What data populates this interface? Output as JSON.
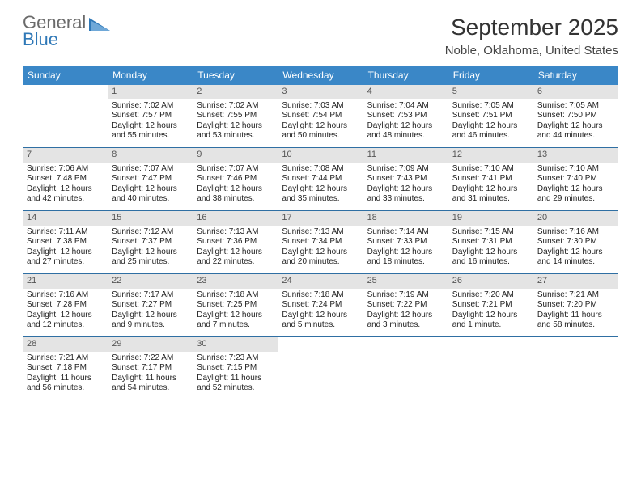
{
  "logo": {
    "line1": "General",
    "line2": "Blue"
  },
  "title": "September 2025",
  "location": "Noble, Oklahoma, United States",
  "colors": {
    "header_bg": "#3a87c7",
    "header_text": "#ffffff",
    "daynum_bg": "#e4e4e4",
    "cell_border": "#2f6fa3",
    "logo_gray": "#6a6a6a",
    "logo_blue": "#2f78b7"
  },
  "typography": {
    "title_fontsize": 28,
    "location_fontsize": 15,
    "dow_fontsize": 12,
    "cell_fontsize": 10
  },
  "days_of_week": [
    "Sunday",
    "Monday",
    "Tuesday",
    "Wednesday",
    "Thursday",
    "Friday",
    "Saturday"
  ],
  "weeks": [
    [
      null,
      {
        "n": "1",
        "sr": "Sunrise: 7:02 AM",
        "ss": "Sunset: 7:57 PM",
        "dl1": "Daylight: 12 hours",
        "dl2": "and 55 minutes."
      },
      {
        "n": "2",
        "sr": "Sunrise: 7:02 AM",
        "ss": "Sunset: 7:55 PM",
        "dl1": "Daylight: 12 hours",
        "dl2": "and 53 minutes."
      },
      {
        "n": "3",
        "sr": "Sunrise: 7:03 AM",
        "ss": "Sunset: 7:54 PM",
        "dl1": "Daylight: 12 hours",
        "dl2": "and 50 minutes."
      },
      {
        "n": "4",
        "sr": "Sunrise: 7:04 AM",
        "ss": "Sunset: 7:53 PM",
        "dl1": "Daylight: 12 hours",
        "dl2": "and 48 minutes."
      },
      {
        "n": "5",
        "sr": "Sunrise: 7:05 AM",
        "ss": "Sunset: 7:51 PM",
        "dl1": "Daylight: 12 hours",
        "dl2": "and 46 minutes."
      },
      {
        "n": "6",
        "sr": "Sunrise: 7:05 AM",
        "ss": "Sunset: 7:50 PM",
        "dl1": "Daylight: 12 hours",
        "dl2": "and 44 minutes."
      }
    ],
    [
      {
        "n": "7",
        "sr": "Sunrise: 7:06 AM",
        "ss": "Sunset: 7:48 PM",
        "dl1": "Daylight: 12 hours",
        "dl2": "and 42 minutes."
      },
      {
        "n": "8",
        "sr": "Sunrise: 7:07 AM",
        "ss": "Sunset: 7:47 PM",
        "dl1": "Daylight: 12 hours",
        "dl2": "and 40 minutes."
      },
      {
        "n": "9",
        "sr": "Sunrise: 7:07 AM",
        "ss": "Sunset: 7:46 PM",
        "dl1": "Daylight: 12 hours",
        "dl2": "and 38 minutes."
      },
      {
        "n": "10",
        "sr": "Sunrise: 7:08 AM",
        "ss": "Sunset: 7:44 PM",
        "dl1": "Daylight: 12 hours",
        "dl2": "and 35 minutes."
      },
      {
        "n": "11",
        "sr": "Sunrise: 7:09 AM",
        "ss": "Sunset: 7:43 PM",
        "dl1": "Daylight: 12 hours",
        "dl2": "and 33 minutes."
      },
      {
        "n": "12",
        "sr": "Sunrise: 7:10 AM",
        "ss": "Sunset: 7:41 PM",
        "dl1": "Daylight: 12 hours",
        "dl2": "and 31 minutes."
      },
      {
        "n": "13",
        "sr": "Sunrise: 7:10 AM",
        "ss": "Sunset: 7:40 PM",
        "dl1": "Daylight: 12 hours",
        "dl2": "and 29 minutes."
      }
    ],
    [
      {
        "n": "14",
        "sr": "Sunrise: 7:11 AM",
        "ss": "Sunset: 7:38 PM",
        "dl1": "Daylight: 12 hours",
        "dl2": "and 27 minutes."
      },
      {
        "n": "15",
        "sr": "Sunrise: 7:12 AM",
        "ss": "Sunset: 7:37 PM",
        "dl1": "Daylight: 12 hours",
        "dl2": "and 25 minutes."
      },
      {
        "n": "16",
        "sr": "Sunrise: 7:13 AM",
        "ss": "Sunset: 7:36 PM",
        "dl1": "Daylight: 12 hours",
        "dl2": "and 22 minutes."
      },
      {
        "n": "17",
        "sr": "Sunrise: 7:13 AM",
        "ss": "Sunset: 7:34 PM",
        "dl1": "Daylight: 12 hours",
        "dl2": "and 20 minutes."
      },
      {
        "n": "18",
        "sr": "Sunrise: 7:14 AM",
        "ss": "Sunset: 7:33 PM",
        "dl1": "Daylight: 12 hours",
        "dl2": "and 18 minutes."
      },
      {
        "n": "19",
        "sr": "Sunrise: 7:15 AM",
        "ss": "Sunset: 7:31 PM",
        "dl1": "Daylight: 12 hours",
        "dl2": "and 16 minutes."
      },
      {
        "n": "20",
        "sr": "Sunrise: 7:16 AM",
        "ss": "Sunset: 7:30 PM",
        "dl1": "Daylight: 12 hours",
        "dl2": "and 14 minutes."
      }
    ],
    [
      {
        "n": "21",
        "sr": "Sunrise: 7:16 AM",
        "ss": "Sunset: 7:28 PM",
        "dl1": "Daylight: 12 hours",
        "dl2": "and 12 minutes."
      },
      {
        "n": "22",
        "sr": "Sunrise: 7:17 AM",
        "ss": "Sunset: 7:27 PM",
        "dl1": "Daylight: 12 hours",
        "dl2": "and 9 minutes."
      },
      {
        "n": "23",
        "sr": "Sunrise: 7:18 AM",
        "ss": "Sunset: 7:25 PM",
        "dl1": "Daylight: 12 hours",
        "dl2": "and 7 minutes."
      },
      {
        "n": "24",
        "sr": "Sunrise: 7:18 AM",
        "ss": "Sunset: 7:24 PM",
        "dl1": "Daylight: 12 hours",
        "dl2": "and 5 minutes."
      },
      {
        "n": "25",
        "sr": "Sunrise: 7:19 AM",
        "ss": "Sunset: 7:22 PM",
        "dl1": "Daylight: 12 hours",
        "dl2": "and 3 minutes."
      },
      {
        "n": "26",
        "sr": "Sunrise: 7:20 AM",
        "ss": "Sunset: 7:21 PM",
        "dl1": "Daylight: 12 hours",
        "dl2": "and 1 minute."
      },
      {
        "n": "27",
        "sr": "Sunrise: 7:21 AM",
        "ss": "Sunset: 7:20 PM",
        "dl1": "Daylight: 11 hours",
        "dl2": "and 58 minutes."
      }
    ],
    [
      {
        "n": "28",
        "sr": "Sunrise: 7:21 AM",
        "ss": "Sunset: 7:18 PM",
        "dl1": "Daylight: 11 hours",
        "dl2": "and 56 minutes."
      },
      {
        "n": "29",
        "sr": "Sunrise: 7:22 AM",
        "ss": "Sunset: 7:17 PM",
        "dl1": "Daylight: 11 hours",
        "dl2": "and 54 minutes."
      },
      {
        "n": "30",
        "sr": "Sunrise: 7:23 AM",
        "ss": "Sunset: 7:15 PM",
        "dl1": "Daylight: 11 hours",
        "dl2": "and 52 minutes."
      },
      null,
      null,
      null,
      null
    ]
  ]
}
